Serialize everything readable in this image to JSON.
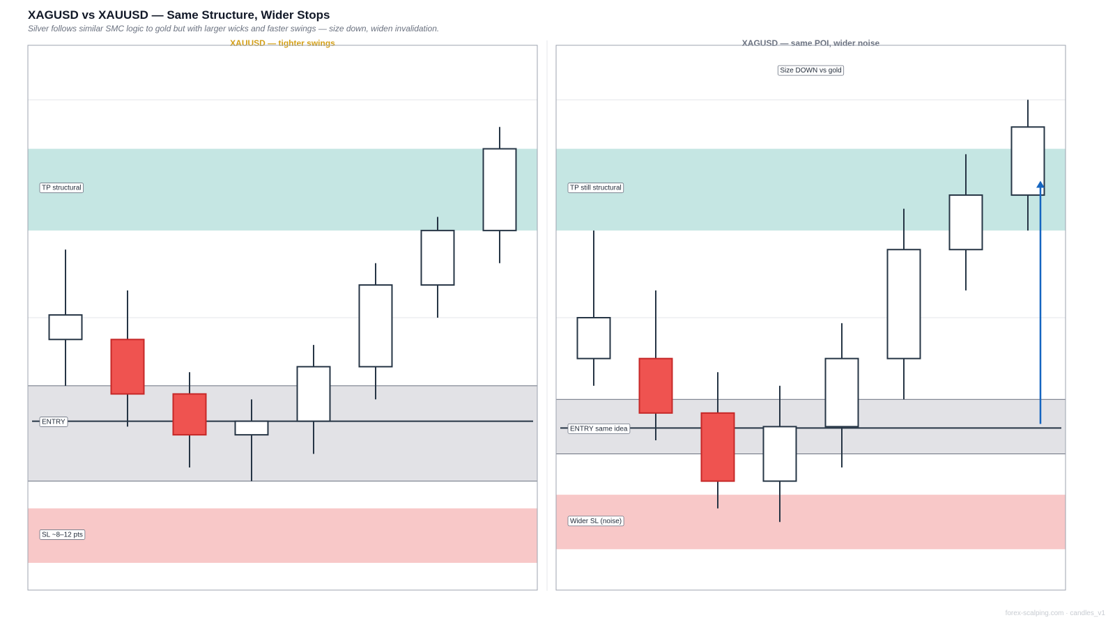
{
  "header": {
    "title": "XAGUSD vs XAUUSD — Same Structure, Wider Stops",
    "subtitle": "Silver follows similar SMC logic to gold but with larger wicks and faster swings — size down, widen invalidation."
  },
  "footer": {
    "watermark": "forex-scalping.com · candles_v1"
  },
  "colors": {
    "bull_fill": "#ffffff",
    "bear_fill": "#ef5350",
    "bear_stroke": "#c62828",
    "bull_stroke": "#263545",
    "tp_zone": "#c5e6e3",
    "entry_zone": "#e2e2e6",
    "sl_zone": "#f8c8c8",
    "arrow": "#1565c0",
    "left_title": "#d4a017",
    "right_title": "#6b7280"
  },
  "chart_data": [
    {
      "type": "candlestick",
      "title": "XAUUSD — tighter swings",
      "ylim": [
        0,
        20
      ],
      "candles": [
        {
          "o": 9.2,
          "h": 12.5,
          "l": 7.5,
          "c": 10.1
        },
        {
          "o": 9.2,
          "h": 11.0,
          "l": 6.0,
          "c": 7.2
        },
        {
          "o": 7.2,
          "h": 8.0,
          "l": 4.5,
          "c": 5.7
        },
        {
          "o": 5.7,
          "h": 7.0,
          "l": 4.0,
          "c": 6.2
        },
        {
          "o": 6.2,
          "h": 9.0,
          "l": 5.0,
          "c": 8.2
        },
        {
          "o": 8.2,
          "h": 12.0,
          "l": 7.0,
          "c": 11.2
        },
        {
          "o": 11.2,
          "h": 13.7,
          "l": 10.0,
          "c": 13.2
        },
        {
          "o": 13.2,
          "h": 17.0,
          "l": 12.0,
          "c": 16.2
        }
      ],
      "zones": [
        {
          "kind": "tp",
          "label": "TP structural",
          "from": 13.2,
          "to": 16.2
        },
        {
          "kind": "entry",
          "label": "ENTRY",
          "from": 4.0,
          "to": 7.5,
          "line": 6.2
        },
        {
          "kind": "sl",
          "label": "SL ~8–12 pts",
          "from": 1.0,
          "to": 3.0
        }
      ]
    },
    {
      "type": "candlestick",
      "title": "XAGUSD — same POI, wider noise",
      "ylim": [
        0,
        20
      ],
      "note": "Size DOWN vs gold",
      "candles": [
        {
          "o": 8.5,
          "h": 13.2,
          "l": 7.5,
          "c": 10.0
        },
        {
          "o": 8.5,
          "h": 11.0,
          "l": 5.5,
          "c": 6.5
        },
        {
          "o": 6.5,
          "h": 8.0,
          "l": 3.0,
          "c": 4.0
        },
        {
          "o": 4.0,
          "h": 7.5,
          "l": 2.5,
          "c": 6.0
        },
        {
          "o": 6.0,
          "h": 9.8,
          "l": 4.5,
          "c": 8.5
        },
        {
          "o": 8.5,
          "h": 14.0,
          "l": 7.0,
          "c": 12.5
        },
        {
          "o": 12.5,
          "h": 16.0,
          "l": 11.0,
          "c": 14.5
        },
        {
          "o": 14.5,
          "h": 18.0,
          "l": 13.2,
          "c": 17.0
        }
      ],
      "zones": [
        {
          "kind": "tp",
          "label": "TP still structural",
          "from": 13.2,
          "to": 16.2
        },
        {
          "kind": "entry",
          "label": "ENTRY same idea",
          "from": 5.0,
          "to": 7.0,
          "line": 5.95
        },
        {
          "kind": "sl",
          "label": "Wider SL (noise)",
          "from": 1.5,
          "to": 3.5
        }
      ],
      "arrow": {
        "from": 6.1,
        "to": 15.0
      }
    }
  ]
}
